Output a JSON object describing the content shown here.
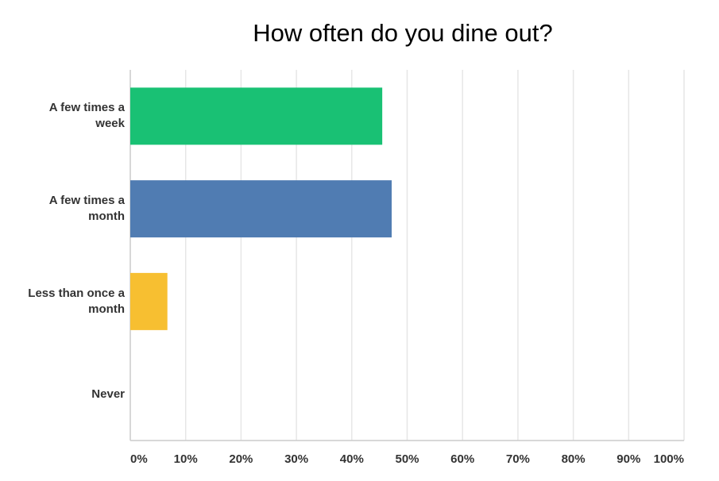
{
  "chart_data": {
    "type": "bar",
    "orientation": "horizontal",
    "title": "How often do you dine out?",
    "categories": [
      "A few times a week",
      "A few times a month",
      "Less than once a month",
      "Never"
    ],
    "values": [
      45.5,
      47.2,
      6.7,
      0
    ],
    "colors": [
      "#19c174",
      "#507cb2",
      "#f7bf31",
      "#e05a4e"
    ],
    "xlim": [
      0,
      100
    ],
    "xticks": [
      {
        "value": 0,
        "label": "0%"
      },
      {
        "value": 10,
        "label": "10%"
      },
      {
        "value": 20,
        "label": "20%"
      },
      {
        "value": 30,
        "label": "30%"
      },
      {
        "value": 40,
        "label": "40%"
      },
      {
        "value": 50,
        "label": "50%"
      },
      {
        "value": 60,
        "label": "60%"
      },
      {
        "value": 70,
        "label": "70%"
      },
      {
        "value": 80,
        "label": "80%"
      },
      {
        "value": 90,
        "label": "90%"
      },
      {
        "value": 100,
        "label": "100%"
      }
    ],
    "grid": true
  }
}
